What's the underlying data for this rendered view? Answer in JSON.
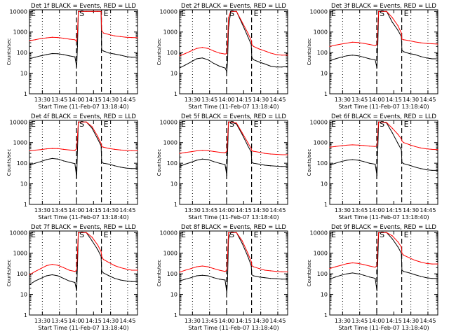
{
  "figure": {
    "x_tick_labels": [
      "13:30",
      "13:45",
      "14:00",
      "14:15",
      "14:30",
      "14:45"
    ],
    "y_tick_labels": [
      "1",
      "10",
      "100",
      "1000",
      "10000"
    ],
    "xlabel": "Start Time (11-Feb-07 13:18:40)",
    "ylabel": "Counts/sec",
    "marker_left": "E",
    "marker_mid": "S",
    "marker_right": "E",
    "colors": {
      "events": "#000000",
      "lld": "#ff0000",
      "axes": "#000000"
    }
  },
  "chart_data": [
    {
      "type": "line",
      "title": "Det 1f BLACK = Events, RED = LLD",
      "x_minutes_after_13_18_40": [
        0,
        5,
        10,
        15,
        20,
        25,
        30,
        35,
        40,
        41.5,
        42.2,
        43,
        45,
        50,
        55,
        60,
        63,
        63.5,
        65,
        70,
        75,
        80,
        85,
        90,
        95
      ],
      "series": [
        {
          "name": "Events",
          "values": [
            50,
            60,
            70,
            80,
            90,
            88,
            80,
            70,
            62,
            20,
            200,
            10000,
            10000,
            10000,
            10000,
            10000,
            10000,
            140,
            120,
            95,
            85,
            75,
            65,
            60,
            60
          ]
        },
        {
          "name": "LLD",
          "values": [
            380,
            420,
            480,
            520,
            560,
            540,
            500,
            450,
            420,
            350,
            1000,
            10000,
            10000,
            10000,
            10000,
            10000,
            10000,
            1200,
            900,
            750,
            650,
            600,
            560,
            540,
            530
          ]
        }
      ],
      "ylim": [
        1,
        12000
      ],
      "scale": "log"
    },
    {
      "type": "line",
      "title": "Det 2f BLACK = Events, RED = LLD",
      "x_minutes_after_13_18_40": [
        0,
        5,
        10,
        15,
        20,
        25,
        30,
        35,
        40,
        41.5,
        42.2,
        43,
        45,
        50,
        55,
        60,
        63,
        63.5,
        65,
        70,
        75,
        80,
        85,
        90,
        95
      ],
      "series": [
        {
          "name": "Events",
          "values": [
            18,
            25,
            35,
            50,
            55,
            45,
            30,
            22,
            18,
            12,
            40,
            1500,
            10000,
            10000,
            2500,
            600,
            250,
            60,
            45,
            35,
            28,
            22,
            20,
            20,
            22
          ]
        },
        {
          "name": "LLD",
          "values": [
            70,
            90,
            120,
            160,
            180,
            160,
            120,
            95,
            85,
            90,
            300,
            5000,
            10000,
            10000,
            3000,
            900,
            400,
            250,
            200,
            150,
            120,
            95,
            80,
            75,
            75
          ]
        }
      ],
      "ylim": [
        1,
        12000
      ],
      "scale": "log"
    },
    {
      "type": "line",
      "title": "Det 3f BLACK = Events, RED = LLD",
      "x_minutes_after_13_18_40": [
        0,
        5,
        10,
        15,
        20,
        25,
        30,
        35,
        40,
        41.5,
        42.2,
        43,
        45,
        50,
        55,
        60,
        63,
        63.5,
        65,
        70,
        75,
        80,
        85,
        90,
        95
      ],
      "series": [
        {
          "name": "Events",
          "values": [
            40,
            50,
            60,
            70,
            75,
            70,
            60,
            50,
            45,
            18,
            150,
            10000,
            10000,
            10000,
            3000,
            1200,
            600,
            130,
            110,
            90,
            80,
            65,
            55,
            50,
            50
          ]
        },
        {
          "name": "LLD",
          "values": [
            200,
            230,
            260,
            290,
            320,
            310,
            280,
            250,
            220,
            250,
            1200,
            10000,
            10000,
            10000,
            5000,
            2000,
            900,
            450,
            420,
            380,
            330,
            300,
            280,
            270,
            260
          ]
        }
      ],
      "ylim": [
        1,
        12000
      ],
      "scale": "log"
    },
    {
      "type": "line",
      "title": "Det 4f BLACK = Events, RED = LLD",
      "x_minutes_after_13_18_40": [
        0,
        5,
        10,
        15,
        20,
        25,
        30,
        35,
        40,
        41.5,
        42.2,
        43,
        45,
        50,
        55,
        60,
        63,
        63.5,
        65,
        70,
        75,
        80,
        85,
        90,
        95
      ],
      "series": [
        {
          "name": "Events",
          "values": [
            80,
            100,
            120,
            150,
            170,
            160,
            130,
            110,
            95,
            20,
            400,
            10000,
            10000,
            10000,
            5000,
            1500,
            700,
            120,
            100,
            90,
            75,
            65,
            58,
            55,
            55
          ]
        },
        {
          "name": "LLD",
          "values": [
            400,
            430,
            460,
            500,
            520,
            510,
            470,
            440,
            420,
            500,
            2000,
            10000,
            10000,
            10000,
            6000,
            2000,
            900,
            650,
            600,
            520,
            470,
            440,
            420,
            410,
            400
          ]
        }
      ],
      "ylim": [
        1,
        12000
      ],
      "scale": "log"
    },
    {
      "type": "line",
      "title": "Det 5f BLACK = Events, RED = LLD",
      "x_minutes_after_13_18_40": [
        0,
        5,
        10,
        15,
        20,
        25,
        30,
        35,
        40,
        41.5,
        42.2,
        43,
        45,
        50,
        55,
        60,
        63,
        63.5,
        65,
        70,
        75,
        80,
        85,
        90,
        95
      ],
      "series": [
        {
          "name": "Events",
          "values": [
            70,
            90,
            110,
            140,
            160,
            150,
            120,
            100,
            85,
            25,
            300,
            10000,
            10000,
            8000,
            2500,
            700,
            350,
            110,
            100,
            90,
            80,
            75,
            72,
            70,
            70
          ]
        },
        {
          "name": "LLD",
          "values": [
            300,
            330,
            360,
            400,
            420,
            410,
            370,
            340,
            320,
            380,
            1500,
            10000,
            10000,
            9000,
            3000,
            1000,
            500,
            400,
            380,
            340,
            300,
            280,
            270,
            260,
            260
          ]
        }
      ],
      "ylim": [
        1,
        12000
      ],
      "scale": "log"
    },
    {
      "type": "line",
      "title": "Det 6f BLACK = Events, RED = LLD",
      "x_minutes_after_13_18_40": [
        0,
        5,
        10,
        15,
        20,
        25,
        30,
        35,
        40,
        41.5,
        42.2,
        43,
        45,
        50,
        55,
        60,
        63,
        63.5,
        65,
        70,
        75,
        80,
        85,
        90,
        95
      ],
      "series": [
        {
          "name": "Events",
          "values": [
            80,
            100,
            120,
            140,
            150,
            140,
            120,
            100,
            90,
            25,
            350,
            10000,
            10000,
            9000,
            3000,
            900,
            450,
            110,
            95,
            80,
            65,
            55,
            48,
            45,
            45
          ]
        },
        {
          "name": "LLD",
          "values": [
            600,
            650,
            700,
            750,
            780,
            760,
            720,
            680,
            650,
            700,
            2500,
            10000,
            10000,
            9500,
            5000,
            2500,
            1500,
            1200,
            1000,
            800,
            650,
            550,
            500,
            470,
            460
          ]
        }
      ],
      "ylim": [
        1,
        12000
      ],
      "scale": "log"
    },
    {
      "type": "line",
      "title": "Det 7f BLACK = Events, RED = LLD",
      "x_minutes_after_13_18_40": [
        0,
        5,
        10,
        15,
        20,
        25,
        30,
        35,
        40,
        41.5,
        42.2,
        43,
        45,
        50,
        55,
        60,
        63,
        63.5,
        65,
        70,
        75,
        80,
        85,
        90,
        95
      ],
      "series": [
        {
          "name": "Events",
          "values": [
            30,
            45,
            60,
            80,
            90,
            80,
            60,
            45,
            38,
            15,
            250,
            10000,
            10000,
            10000,
            4000,
            1500,
            700,
            140,
            110,
            80,
            60,
            50,
            45,
            42,
            42
          ]
        },
        {
          "name": "LLD",
          "values": [
            90,
            130,
            180,
            250,
            290,
            260,
            200,
            150,
            130,
            150,
            1200,
            10000,
            10000,
            10000,
            6000,
            2500,
            1200,
            700,
            500,
            350,
            250,
            200,
            170,
            150,
            150
          ]
        }
      ],
      "ylim": [
        1,
        12000
      ],
      "scale": "log"
    },
    {
      "type": "line",
      "title": "Det 8f BLACK = Events, RED = LLD",
      "x_minutes_after_13_18_40": [
        0,
        5,
        10,
        15,
        20,
        25,
        30,
        35,
        40,
        41.5,
        42.2,
        43,
        45,
        50,
        55,
        60,
        63,
        63.5,
        65,
        70,
        75,
        80,
        85,
        90,
        95
      ],
      "series": [
        {
          "name": "Events",
          "values": [
            45,
            55,
            65,
            80,
            85,
            80,
            65,
            55,
            50,
            12,
            60,
            5000,
            10000,
            10000,
            3000,
            700,
            250,
            90,
            80,
            70,
            65,
            60,
            58,
            55,
            55
          ]
        },
        {
          "name": "LLD",
          "values": [
            120,
            150,
            180,
            220,
            240,
            220,
            180,
            150,
            130,
            150,
            800,
            10000,
            10000,
            10000,
            4000,
            1000,
            400,
            250,
            220,
            180,
            150,
            140,
            130,
            125,
            125
          ]
        }
      ],
      "ylim": [
        1,
        12000
      ],
      "scale": "log"
    },
    {
      "type": "line",
      "title": "Det 9f BLACK = Events, RED = LLD",
      "x_minutes_after_13_18_40": [
        0,
        5,
        10,
        15,
        20,
        25,
        30,
        35,
        40,
        41.5,
        42.2,
        43,
        45,
        50,
        55,
        60,
        63,
        63.5,
        65,
        70,
        75,
        80,
        85,
        90,
        95
      ],
      "series": [
        {
          "name": "Events",
          "values": [
            55,
            70,
            85,
            100,
            110,
            100,
            85,
            70,
            60,
            15,
            300,
            10000,
            10000,
            10000,
            5000,
            2000,
            1000,
            150,
            130,
            110,
            90,
            75,
            65,
            60,
            60
          ]
        },
        {
          "name": "LLD",
          "values": [
            180,
            220,
            260,
            310,
            340,
            320,
            280,
            240,
            210,
            250,
            2000,
            10000,
            10000,
            10000,
            7000,
            3500,
            2000,
            1000,
            800,
            600,
            450,
            370,
            320,
            300,
            300
          ]
        }
      ],
      "ylim": [
        1,
        12000
      ],
      "scale": "log"
    }
  ]
}
